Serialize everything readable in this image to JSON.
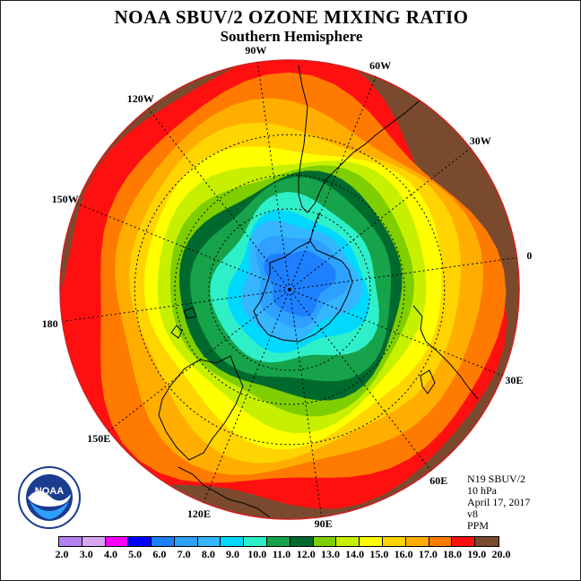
{
  "title": "NOAA SBUV/2 OZONE MIXING RATIO",
  "subtitle": "Southern Hemisphere",
  "info": [
    "N19 SBUV/2",
    "10 hPa",
    "April 17, 2017",
    "v8",
    "PPM"
  ],
  "logo": {
    "text": "NOAA",
    "icon": "noaa-logo"
  },
  "longitudes": [
    {
      "label": "0",
      "deg": 0
    },
    {
      "label": "30W",
      "deg": -30
    },
    {
      "label": "60W",
      "deg": -60
    },
    {
      "label": "90W",
      "deg": -90
    },
    {
      "label": "120W",
      "deg": -120
    },
    {
      "label": "150W",
      "deg": -150
    },
    {
      "label": "180",
      "deg": 180
    },
    {
      "label": "150E",
      "deg": 150
    },
    {
      "label": "120E",
      "deg": 120
    },
    {
      "label": "90E",
      "deg": 90
    },
    {
      "label": "60E",
      "deg": 60
    },
    {
      "label": "30E",
      "deg": 30
    }
  ],
  "colorbar": {
    "ticks": [
      "2.0",
      "3.0",
      "4.0",
      "5.0",
      "6.0",
      "7.0",
      "8.0",
      "9.0",
      "10.0",
      "11.0",
      "12.0",
      "13.0",
      "14.0",
      "15.0",
      "16.0",
      "17.0",
      "18.0",
      "19.0",
      "20.0"
    ],
    "colors": [
      "#b380f0",
      "#d9a6f0",
      "#ff00ff",
      "#0000ff",
      "#1e7fff",
      "#2ea0ff",
      "#35b6ff",
      "#00d8ff",
      "#2ef0c8",
      "#16a34a",
      "#006a2e",
      "#7fcf00",
      "#c6f000",
      "#ffff00",
      "#ffd400",
      "#ffae00",
      "#ff7a00",
      "#ff1010",
      "#7a4a2e"
    ]
  },
  "ozone_field": {
    "units": "PPM",
    "pressure_hpa": 10,
    "levels": [
      20.0,
      19.0,
      18.0,
      17.0,
      16.0,
      15.0,
      14.0,
      13.0,
      12.0,
      11.0,
      10.0,
      9.0,
      8.0,
      7.0,
      6.0
    ],
    "colors": [
      "#7a4a2e",
      "#ff1010",
      "#ff7a00",
      "#ffae00",
      "#ffd400",
      "#ffff00",
      "#c6f000",
      "#7fcf00",
      "#006a2e",
      "#16a34a",
      "#2ef0c8",
      "#00d8ff",
      "#35b6ff",
      "#2ea0ff",
      "#1e7fff"
    ]
  }
}
